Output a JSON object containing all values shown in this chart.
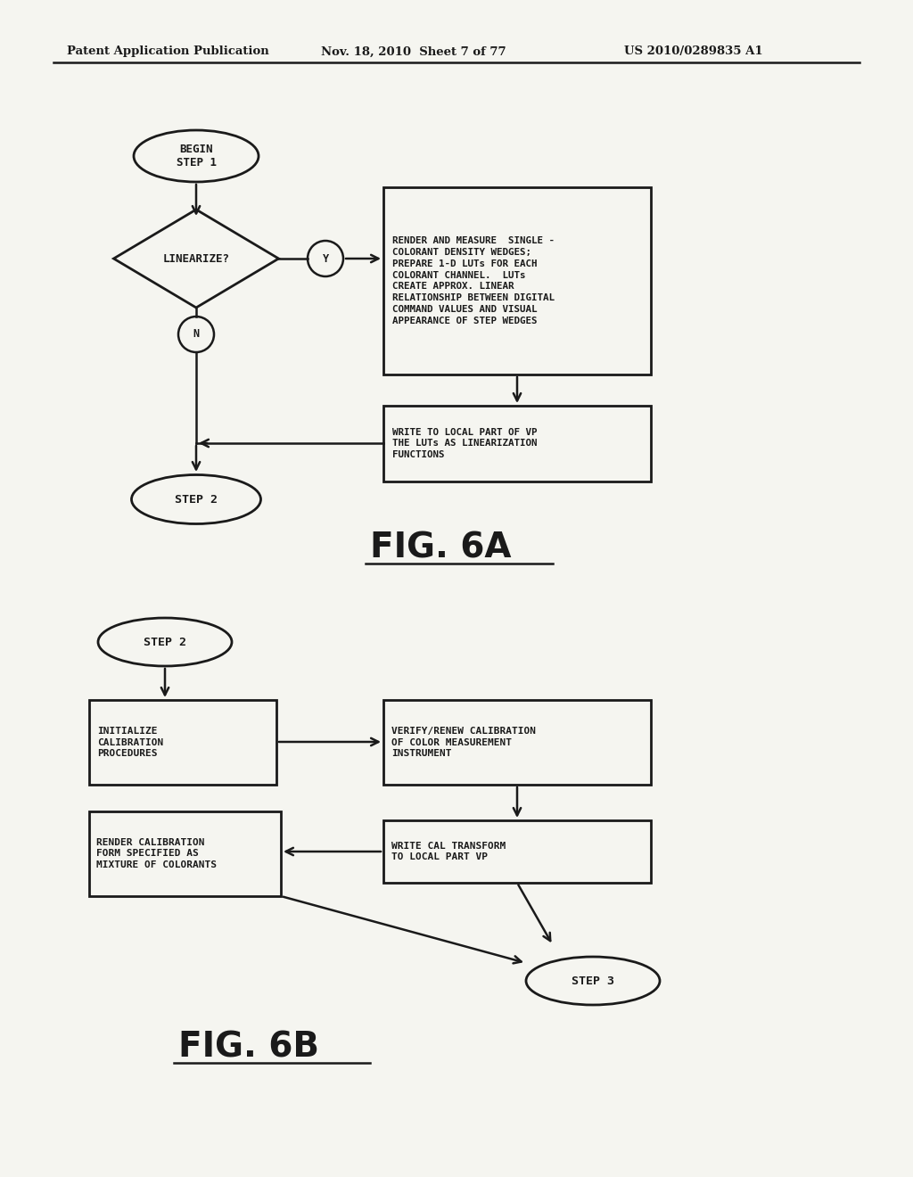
{
  "background_color": "#f5f5f0",
  "header_text": "Patent Application Publication",
  "header_date": "Nov. 18, 2010  Sheet 7 of 77",
  "header_patent": "US 2010/0289835 A1",
  "fig6a_label": "FIG. 6A",
  "fig6b_label": "FIG. 6B",
  "line_color": "#1a1a1a",
  "text_color": "#1a1a1a"
}
